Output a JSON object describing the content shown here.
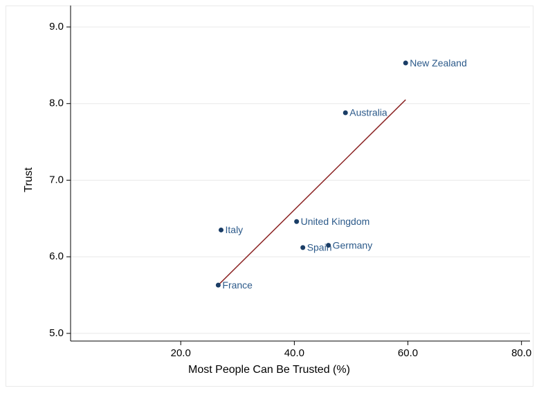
{
  "chart_data": {
    "type": "scatter",
    "x_label": "Most People Can Be Trusted (%)",
    "y_label": "Trust",
    "labels": [
      "New Zealand",
      "Australia",
      "United Kingdom",
      "Italy",
      "Spain",
      "Germany",
      "France"
    ],
    "x": [
      59.6,
      49.0,
      40.4,
      27.1,
      41.5,
      46.0,
      26.6
    ],
    "values": [
      8.53,
      7.88,
      6.46,
      6.35,
      6.12,
      6.15,
      5.63
    ],
    "color": "#1a3d66",
    "label_color": "#2c5a8a",
    "fit": {
      "x": [
        26.6,
        59.6
      ],
      "values": [
        5.63,
        8.05
      ],
      "color": "#8b2323"
    },
    "xlim": [
      0.6,
      81.5
    ],
    "ylim": [
      4.9,
      9.28
    ],
    "xticks": [
      {
        "value": 20,
        "label": "20.0"
      },
      {
        "value": 40,
        "label": "40.0"
      },
      {
        "value": 60,
        "label": "60.0"
      },
      {
        "value": 80,
        "label": "80.0"
      }
    ],
    "yticks": [
      {
        "value": 5,
        "label": "5.0"
      },
      {
        "value": 6,
        "label": "6.0"
      },
      {
        "value": 7,
        "label": "7.0"
      },
      {
        "value": 8,
        "label": "8.0"
      },
      {
        "value": 9,
        "label": "9.0"
      }
    ],
    "grid": true
  }
}
